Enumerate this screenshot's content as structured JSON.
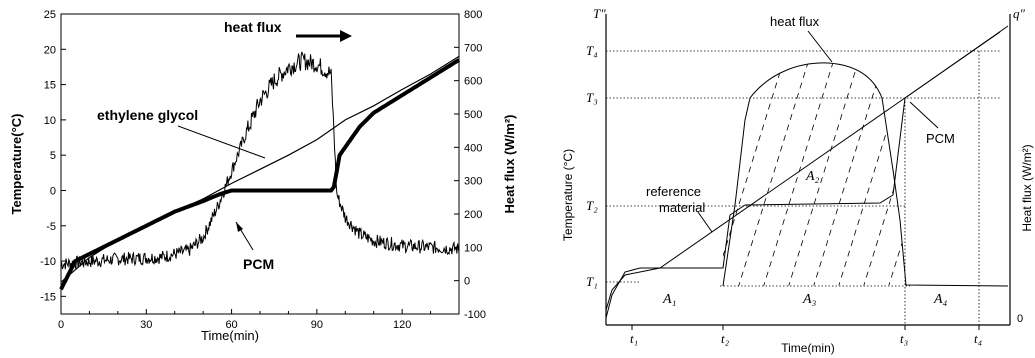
{
  "chart_data": [
    {
      "type": "line",
      "xlabel": "Time(min)",
      "ylabel": "Temperature(°C)",
      "y2label": "Heat flux (W/m²)",
      "xlim": [
        0,
        140
      ],
      "ylim": [
        -17.5,
        25
      ],
      "y2lim": [
        -100,
        800
      ],
      "xticks": [
        "0",
        "30",
        "60",
        "90",
        "120"
      ],
      "yticks": [
        "-15",
        "-10",
        "-5",
        "0",
        "5",
        "10",
        "15",
        "20",
        "25"
      ],
      "y2ticks": [
        "-100",
        "0",
        "100",
        "200",
        "300",
        "400",
        "500",
        "600",
        "700",
        "800"
      ],
      "annotations": {
        "heat_flux": "heat flux",
        "glycol": "ethylene glycol",
        "pcm": "PCM"
      },
      "series": [
        {
          "name": "ethylene glycol",
          "axis": "left",
          "x": [
            0,
            10,
            20,
            30,
            40,
            50,
            60,
            70,
            80,
            90,
            100,
            110,
            120,
            130,
            140
          ],
          "y": [
            -13,
            -9.5,
            -7,
            -4.8,
            -3,
            -1.2,
            1,
            3,
            5,
            7.2,
            10,
            12,
            14.3,
            16.5,
            19
          ]
        },
        {
          "name": "PCM",
          "axis": "left",
          "x": [
            0,
            5,
            15,
            30,
            40,
            50,
            56,
            60,
            70,
            80,
            90,
            95,
            96,
            98,
            105,
            110,
            120,
            130,
            140
          ],
          "y": [
            -14,
            -10,
            -8,
            -5,
            -3,
            -1.5,
            -0.5,
            0,
            0,
            0,
            0,
            0,
            0.5,
            5,
            9,
            11,
            13.5,
            16,
            18.5
          ]
        },
        {
          "name": "heat flux",
          "axis": "right",
          "x": [
            0,
            20,
            35,
            45,
            50,
            55,
            60,
            65,
            70,
            75,
            80,
            85,
            90,
            95,
            96,
            97,
            100,
            105,
            110,
            120,
            130,
            140
          ],
          "y": [
            50,
            65,
            70,
            90,
            130,
            220,
            330,
            440,
            540,
            600,
            640,
            660,
            650,
            620,
            450,
            260,
            190,
            140,
            120,
            105,
            100,
            95
          ]
        }
      ]
    },
    {
      "type": "line",
      "xlabel": "Time(min)",
      "ylabel": "Temperature (°C)",
      "y2label": "Heat flux (W/m²)",
      "axis_top_left": "T″",
      "axis_top_right": "q″",
      "zero_label": "0",
      "xticks": [
        "t₁",
        "t₂",
        "t₃",
        "t₄"
      ],
      "yticks": [
        "T₁",
        "T₂",
        "T₃",
        "T₄"
      ],
      "annotations": {
        "heat_flux": "heat flux",
        "reference": "reference",
        "material": "material",
        "pcm": "PCM"
      },
      "areas": [
        "A₁",
        "A₂",
        "A₃",
        "A₄"
      ]
    }
  ]
}
